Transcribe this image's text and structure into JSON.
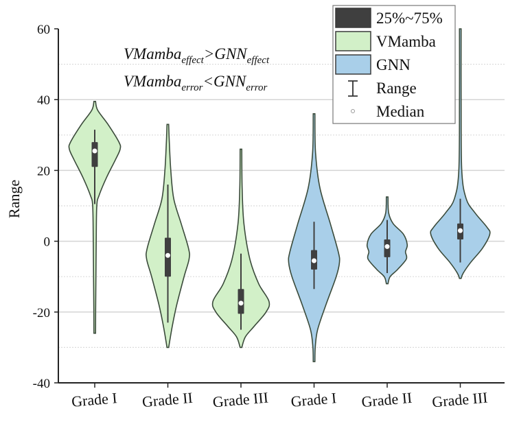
{
  "chart_data": {
    "type": "violin",
    "title": "",
    "xlabel": "",
    "ylabel": "Range",
    "ylim": [
      -40,
      60
    ],
    "yticks": [
      -40,
      -20,
      0,
      20,
      40,
      60
    ],
    "grid": "solid at labeled ticks, dotted at midpoints",
    "legend_placement": "top-right",
    "legend": [
      {
        "label": "25%~75%",
        "kind": "box",
        "color": "#3f3f3f"
      },
      {
        "label": "VMamba",
        "kind": "fill",
        "color": "#d2f0c8"
      },
      {
        "label": "GNN",
        "kind": "fill",
        "color": "#a9cfe9"
      },
      {
        "label": "Range",
        "kind": "whisker"
      },
      {
        "label": "Median",
        "kind": "median"
      }
    ],
    "annotations": [
      {
        "main1": "VMamba",
        "sub1": "effect",
        "op": ">",
        "main2": "GNN",
        "sub2": "effect"
      },
      {
        "main1": "VMamba",
        "sub1": "error",
        "op": "<",
        "main2": "GNN",
        "sub2": "error"
      }
    ],
    "categories": [
      "Grade I",
      "Grade II",
      "Grade III",
      "Grade I",
      "Grade II",
      "Grade III"
    ],
    "series": [
      {
        "name": "VMamba",
        "color": "#d2f0c8",
        "violins": [
          {
            "category_index": 0,
            "whisker": [
              10.5,
              31.5
            ],
            "q1": 21,
            "q3": 28,
            "median": 25.5,
            "density": [
              [
                39.5,
                0
              ],
              [
                37,
                0.1
              ],
              [
                33,
                0.45
              ],
              [
                28,
                0.82
              ],
              [
                26,
                0.86
              ],
              [
                23,
                0.7
              ],
              [
                18,
                0.4
              ],
              [
                13,
                0.15
              ],
              [
                10,
                0.07
              ],
              [
                0,
                0.05
              ],
              [
                -10,
                0.04
              ],
              [
                -20,
                0.03
              ],
              [
                -26,
                0
              ]
            ]
          },
          {
            "category_index": 1,
            "whisker": [
              -23,
              16
            ],
            "q1": -10,
            "q3": 1,
            "median": -4,
            "density": [
              [
                33,
                0
              ],
              [
                28,
                0.05
              ],
              [
                20,
                0.1
              ],
              [
                12,
                0.2
              ],
              [
                5,
                0.45
              ],
              [
                -2,
                0.7
              ],
              [
                -5,
                0.72
              ],
              [
                -10,
                0.55
              ],
              [
                -18,
                0.3
              ],
              [
                -24,
                0.15
              ],
              [
                -30,
                0
              ]
            ]
          },
          {
            "category_index": 2,
            "whisker": [
              -25,
              -3.5
            ],
            "q1": -20.5,
            "q3": -13.5,
            "median": -17.5,
            "density": [
              [
                26,
                0
              ],
              [
                15,
                0.04
              ],
              [
                5,
                0.1
              ],
              [
                -5,
                0.3
              ],
              [
                -12,
                0.6
              ],
              [
                -17,
                0.95
              ],
              [
                -20,
                0.85
              ],
              [
                -24,
                0.45
              ],
              [
                -27,
                0.15
              ],
              [
                -30,
                0
              ]
            ]
          }
        ]
      },
      {
        "name": "GNN",
        "color": "#a9cfe9",
        "violins": [
          {
            "category_index": 3,
            "whisker": [
              -13.5,
              5.5
            ],
            "q1": -8,
            "q3": -2.5,
            "median": -5.5,
            "density": [
              [
                36,
                0
              ],
              [
                25,
                0.05
              ],
              [
                15,
                0.2
              ],
              [
                5,
                0.55
              ],
              [
                -3,
                0.82
              ],
              [
                -6,
                0.86
              ],
              [
                -10,
                0.75
              ],
              [
                -18,
                0.4
              ],
              [
                -25,
                0.12
              ],
              [
                -30,
                0.04
              ],
              [
                -34,
                0
              ]
            ]
          },
          {
            "category_index": 4,
            "whisker": [
              -9,
              6
            ],
            "q1": -4.5,
            "q3": 0.5,
            "median": -1.5,
            "density": [
              [
                12.5,
                0
              ],
              [
                8,
                0.05
              ],
              [
                5,
                0.2
              ],
              [
                2,
                0.55
              ],
              [
                -1,
                0.68
              ],
              [
                -3,
                0.62
              ],
              [
                -5,
                0.65
              ],
              [
                -8,
                0.35
              ],
              [
                -10,
                0.1
              ],
              [
                -12,
                0
              ]
            ]
          },
          {
            "category_index": 5,
            "whisker": [
              -6,
              12
            ],
            "q1": 0.5,
            "q3": 5,
            "median": 3,
            "density": [
              [
                60,
                0
              ],
              [
                40,
                0.02
              ],
              [
                20,
                0.05
              ],
              [
                12,
                0.2
              ],
              [
                8,
                0.5
              ],
              [
                4,
                0.9
              ],
              [
                2,
                1.0
              ],
              [
                -2,
                0.75
              ],
              [
                -6,
                0.35
              ],
              [
                -9,
                0.1
              ],
              [
                -10.5,
                0
              ]
            ]
          }
        ]
      }
    ]
  }
}
